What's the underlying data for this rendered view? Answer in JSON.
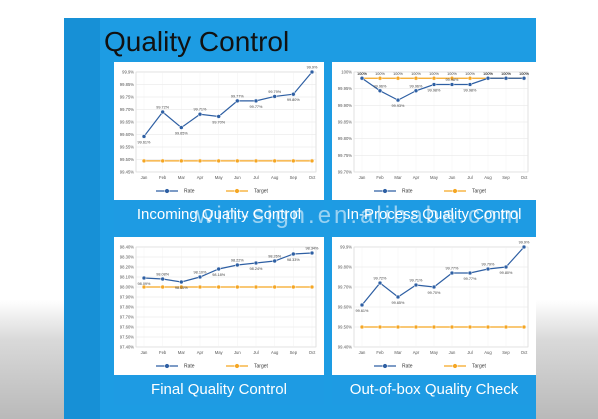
{
  "page": {
    "title": "Quality Control",
    "watermark": "win-sign.en.alibaba.com"
  },
  "chart_data": [
    {
      "type": "line",
      "caption": "Incoming Quality Control",
      "categories": [
        "Jan",
        "Feb",
        "Mar",
        "Apr",
        "May",
        "Jun",
        "Jul",
        "Aug",
        "Sep",
        "Oct"
      ],
      "yticks": [
        "99.9%",
        "99.85%",
        "99.75%",
        "99.70%",
        "99.65%",
        "99.60%",
        "99.55%",
        "99.50%",
        "99.45%"
      ],
      "ylim": [
        99.45,
        99.9
      ],
      "series": [
        {
          "name": "Rate",
          "color": "#2e5fa3",
          "values": [
            99.61,
            99.72,
            99.65,
            99.71,
            99.7,
            99.77,
            99.77,
            99.79,
            99.8,
            99.9
          ],
          "labels": [
            "99.61%",
            "99.72%",
            "99.65%",
            "99.71%",
            "99.70%",
            "99.77%",
            "99.77%",
            "99.79%",
            "99.80%",
            "99.9%"
          ]
        },
        {
          "name": "Target",
          "color": "#f5a623",
          "values": [
            99.5,
            99.5,
            99.5,
            99.5,
            99.5,
            99.5,
            99.5,
            99.5,
            99.5,
            99.5
          ],
          "labels": []
        }
      ],
      "grid": true,
      "legend": "bottom"
    },
    {
      "type": "line",
      "caption": "In-Process Quality Control",
      "categories": [
        "Jan",
        "Feb",
        "Mar",
        "Apr",
        "May",
        "Jun",
        "Jul",
        "Aug",
        "Sep",
        "Oct"
      ],
      "yticks": [
        "100%",
        "99.95%",
        "99.90%",
        "99.85%",
        "99.80%",
        "99.75%",
        "99.70%"
      ],
      "ylim": [
        99.7,
        100.02
      ],
      "series": [
        {
          "name": "Rate",
          "color": "#2e5fa3",
          "values": [
            100,
            99.96,
            99.93,
            99.96,
            99.98,
            99.98,
            99.98,
            100,
            100,
            100
          ],
          "labels": [
            "100%",
            "99.96%",
            "99.93%",
            "99.96%",
            "99.98%",
            "99.98%",
            "99.98%",
            "100%",
            "100%",
            "100%"
          ]
        },
        {
          "name": "Target",
          "color": "#f5a623",
          "values": [
            100,
            100,
            100,
            100,
            100,
            100,
            100,
            100,
            100,
            100
          ],
          "labels": [
            "100%",
            "100%",
            "100%",
            "100%",
            "100%",
            "100%",
            "100%",
            "100%",
            "100%",
            "100%"
          ]
        }
      ],
      "grid": true,
      "legend": "bottom"
    },
    {
      "type": "line",
      "caption": "Final Quality Control",
      "categories": [
        "Jan",
        "Feb",
        "Mar",
        "Apr",
        "May",
        "Jun",
        "Jul",
        "Aug",
        "Sep",
        "Oct"
      ],
      "yticks": [
        "98.40%",
        "98.30%",
        "98.20%",
        "98.10%",
        "98.00%",
        "97.90%",
        "97.80%",
        "97.70%",
        "97.60%",
        "97.50%",
        "97.40%"
      ],
      "ylim": [
        97.4,
        98.4
      ],
      "series": [
        {
          "name": "Rate",
          "color": "#2e5fa3",
          "values": [
            98.09,
            98.08,
            98.05,
            98.1,
            98.18,
            98.22,
            98.24,
            98.26,
            98.33,
            98.34
          ],
          "labels": [
            "98.09%",
            "98.08%",
            "98.05%",
            "98.10%",
            "98.18%",
            "98.22%",
            "98.24%",
            "98.26%",
            "98.33%",
            "98.34%"
          ]
        },
        {
          "name": "Target",
          "color": "#f5a623",
          "values": [
            98.0,
            98.0,
            98.0,
            98.0,
            98.0,
            98.0,
            98.0,
            98.0,
            98.0,
            98.0
          ],
          "labels": []
        }
      ],
      "grid": true,
      "legend": "bottom"
    },
    {
      "type": "line",
      "caption": "Out-of-box Quality Check",
      "categories": [
        "Jan",
        "Feb",
        "Mar",
        "Apr",
        "May",
        "Jun",
        "Jul",
        "Aug",
        "Sep",
        "Oct"
      ],
      "yticks": [
        "99.9%",
        "99.80%",
        "99.70%",
        "99.60%",
        "99.50%",
        "99.40%"
      ],
      "ylim": [
        99.4,
        99.9
      ],
      "series": [
        {
          "name": "Rate",
          "color": "#2e5fa3",
          "values": [
            99.61,
            99.72,
            99.65,
            99.71,
            99.7,
            99.77,
            99.77,
            99.79,
            99.8,
            99.9
          ],
          "labels": [
            "99.61%",
            "99.72%",
            "99.65%",
            "99.71%",
            "99.70%",
            "99.77%",
            "99.77%",
            "99.79%",
            "99.80%",
            "99.9%"
          ]
        },
        {
          "name": "Target",
          "color": "#f5a623",
          "values": [
            99.5,
            99.5,
            99.5,
            99.5,
            99.5,
            99.5,
            99.5,
            99.5,
            99.5,
            99.5
          ],
          "labels": []
        }
      ],
      "grid": true,
      "legend": "bottom"
    }
  ]
}
